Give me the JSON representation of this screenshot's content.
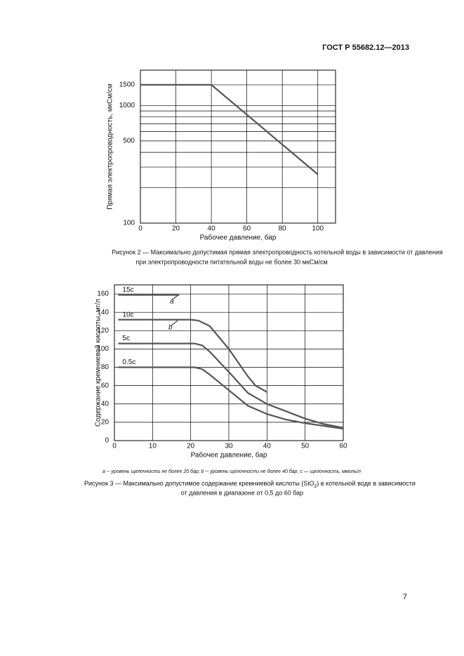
{
  "header": {
    "title": "ГОСТ Р 55682.12—2013"
  },
  "chart_data": [
    {
      "type": "line",
      "log_y": true,
      "grid": true,
      "color": "#555555",
      "ylabel": "Прямая электропроводность, мкСм/см",
      "xlabel": "Рабочее давление, бар",
      "xlim": [
        0,
        110
      ],
      "xticks": [
        0,
        20,
        40,
        60,
        80,
        100
      ],
      "ylim": [
        100,
        2000
      ],
      "yticks": [
        100,
        500,
        1000,
        1500
      ],
      "y_minor_grid": [
        200,
        300,
        400,
        600,
        700,
        800,
        900
      ],
      "series": [
        {
          "color": "#555555",
          "x": [
            0,
            40,
            100
          ],
          "values": [
            1500,
            1500,
            260
          ]
        }
      ]
    },
    {
      "type": "line",
      "log_y": false,
      "grid": true,
      "ylabel": "Содержание кремниевой кислоты, мг/л",
      "xlabel": "Рабочее давление, бар",
      "xlim": [
        0,
        60
      ],
      "xticks": [
        0,
        10,
        20,
        30,
        40,
        50,
        60
      ],
      "ylim": [
        0,
        170
      ],
      "yticks": [
        0,
        20,
        40,
        60,
        80,
        100,
        120,
        140,
        160
      ],
      "annotations": [
        "a",
        "b"
      ],
      "series": [
        {
          "name": "15c",
          "color": "#555555",
          "x": [
            1,
            17
          ],
          "values": [
            159,
            159
          ]
        },
        {
          "name": "10c",
          "color": "#555555",
          "x": [
            1,
            20,
            22,
            25,
            30,
            35,
            37,
            40
          ],
          "values": [
            132,
            132,
            131,
            125,
            100,
            70,
            60,
            53
          ]
        },
        {
          "name": "5c",
          "color": "#555555",
          "x": [
            1,
            21,
            23,
            25,
            30,
            35,
            40,
            45,
            50,
            55,
            60
          ],
          "values": [
            106,
            106,
            104,
            97,
            75,
            52,
            40,
            32,
            24,
            18,
            14
          ]
        },
        {
          "name": "0.5c",
          "color": "#555555",
          "x": [
            1,
            21,
            23,
            25,
            30,
            35,
            40,
            45,
            50,
            55,
            60
          ],
          "values": [
            80,
            80,
            78,
            72,
            55,
            38,
            29,
            23,
            19,
            16,
            13
          ]
        }
      ]
    }
  ],
  "captions": {
    "figure2": [
      "Рисунок 2 — Максимально допустимая прямая электропроводность котельной воды в зависимости от давления",
      "при электропроводности питательной воды не более 30 мкСм/см"
    ],
    "figure3": [
      "Рисунок 3 — Максимально допустимое содержание кремниевой кислоты (SiO",
      "2",
      ") в котельной воде в зависимости",
      "от давления в диапазоне от 0,5 до 60 бар"
    ]
  },
  "footnote": "a -- уровень щелочности не более 20 бар; b -- уровень щелочности не более 40 бар; c — щелочность, ммоль/л",
  "page_number": "7"
}
